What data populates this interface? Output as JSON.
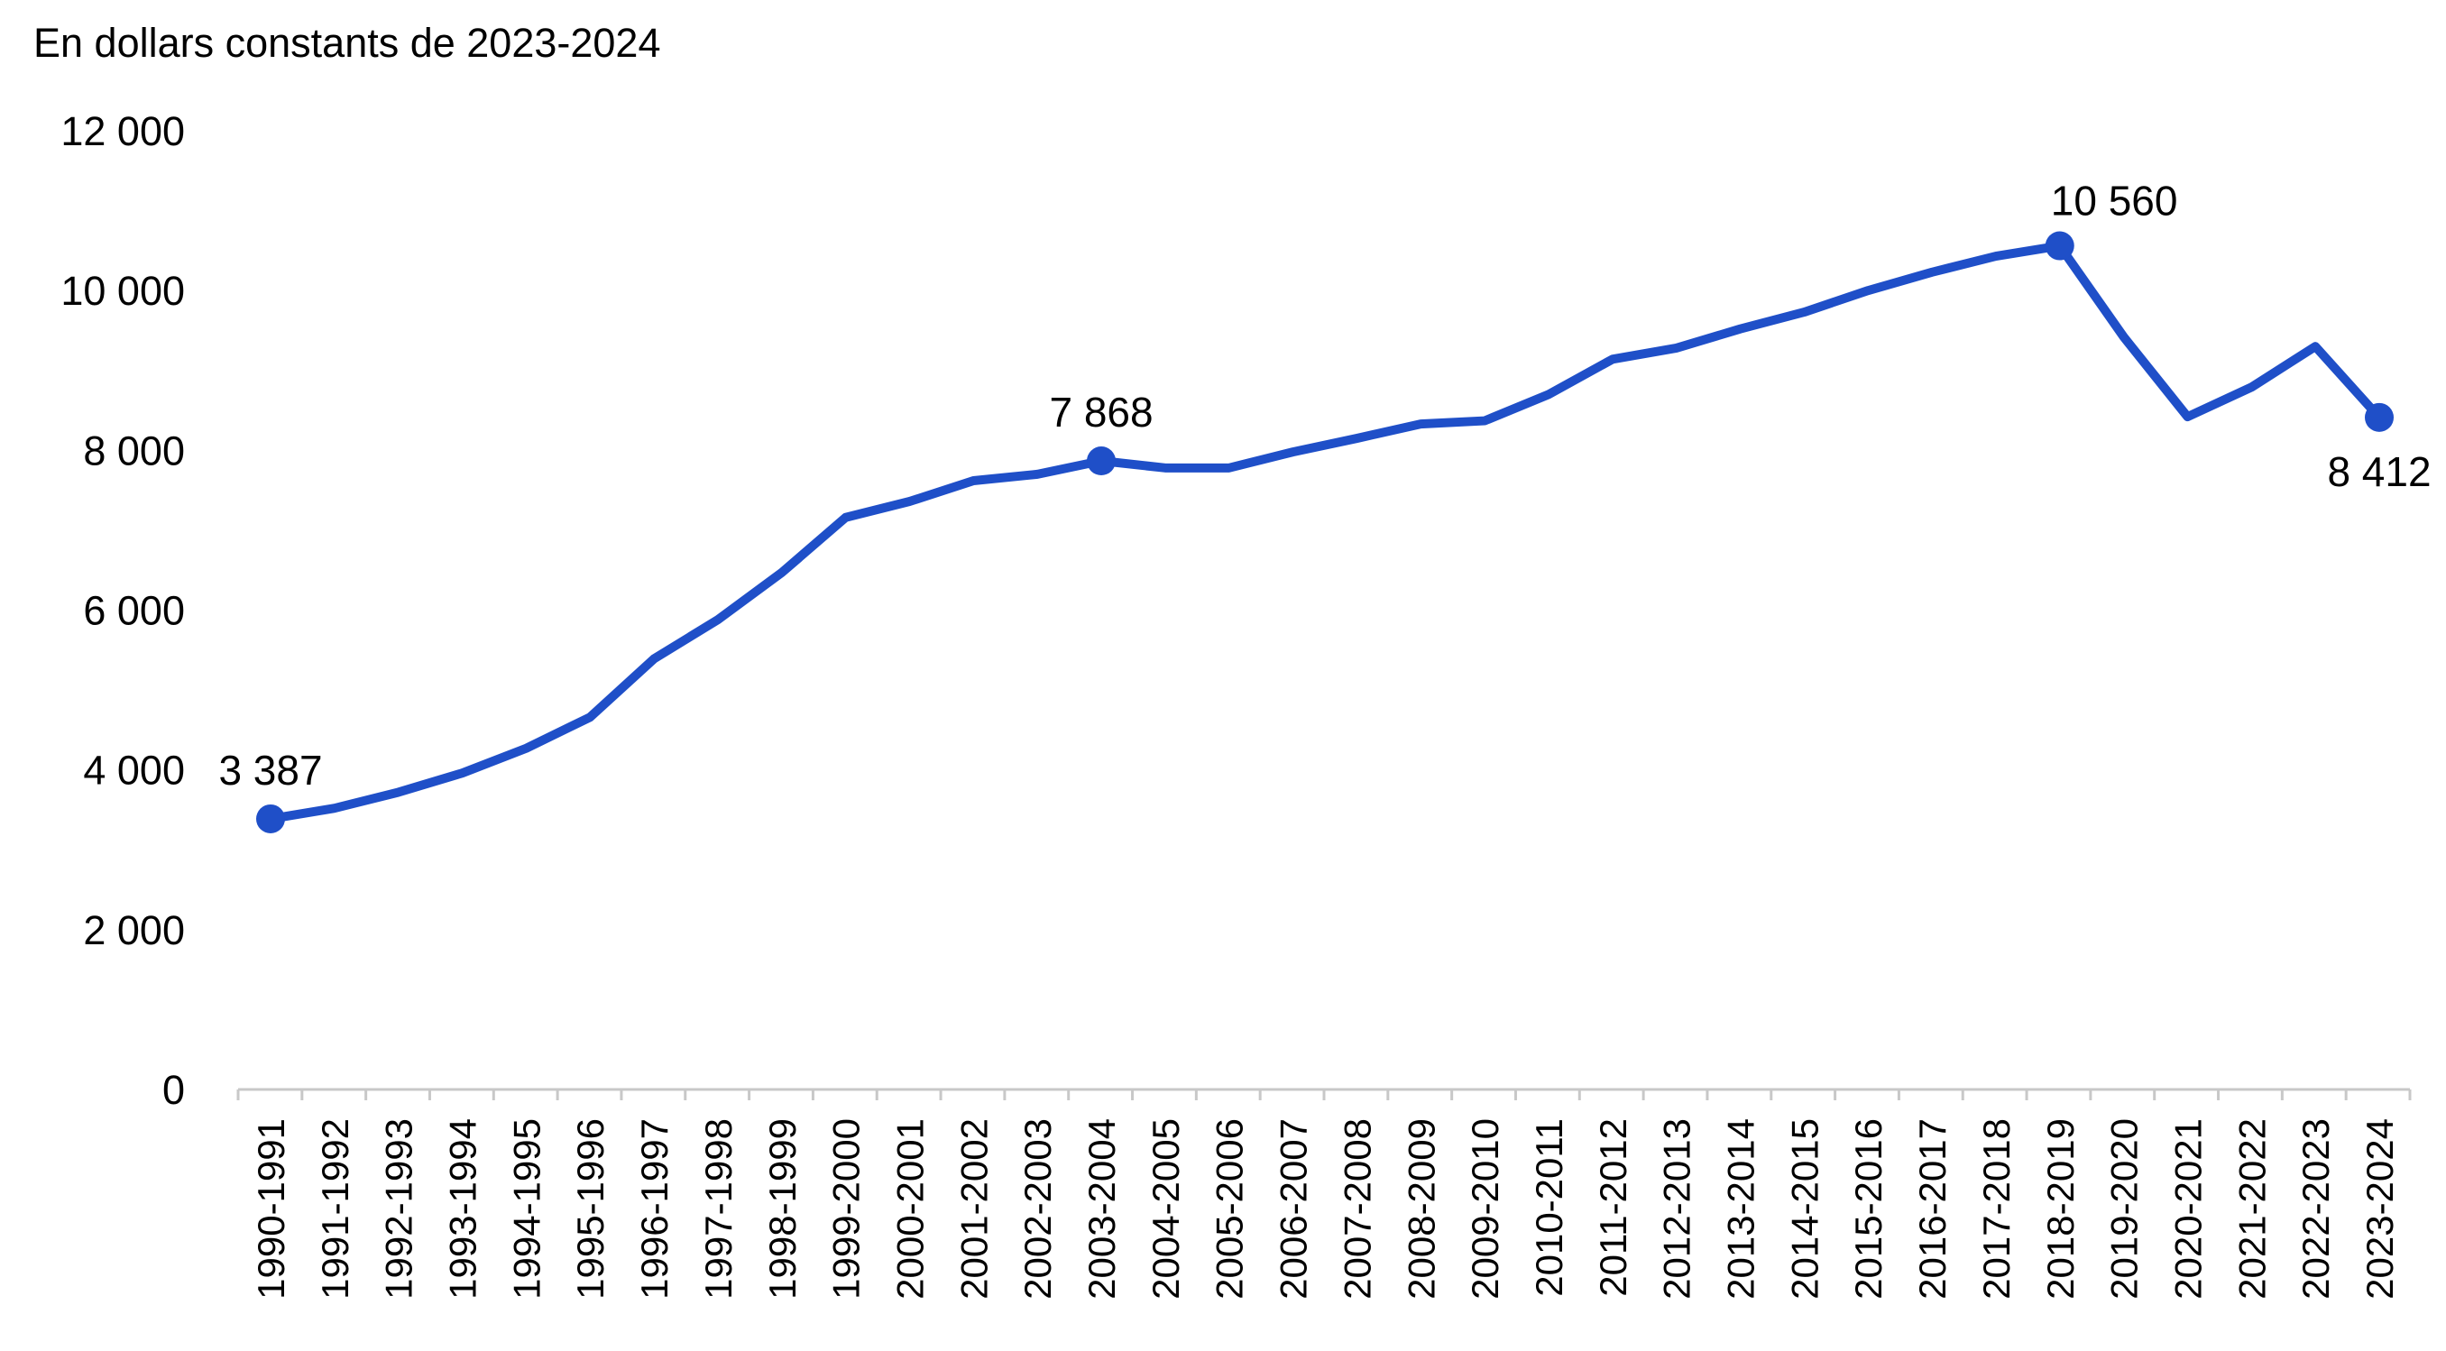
{
  "chart_data": {
    "type": "line",
    "ylabel": "En dollars constants de 2023-2024",
    "ylim": [
      0,
      12000
    ],
    "yticks": [
      0,
      2000,
      4000,
      6000,
      8000,
      10000,
      12000
    ],
    "ytick_labels": [
      "0",
      "2 000",
      "4 000",
      "6 000",
      "8 000",
      "10 000",
      "12 000"
    ],
    "grid": false,
    "categories": [
      "1990-1991",
      "1991-1992",
      "1992-1993",
      "1993-1994",
      "1994-1995",
      "1995-1996",
      "1996-1997",
      "1997-1998",
      "1998-1999",
      "1999-2000",
      "2000-2001",
      "2001-2002",
      "2002-2003",
      "2003-2004",
      "2004-2005",
      "2005-2006",
      "2006-2007",
      "2007-2008",
      "2008-2009",
      "2009-2010",
      "2010-2011",
      "2011-2012",
      "2012-2013",
      "2013-2014",
      "2014-2015",
      "2015-2016",
      "2016-2017",
      "2017-2018",
      "2018-2019",
      "2019-2020",
      "2020-2021",
      "2021-2022",
      "2022-2023",
      "2023-2024"
    ],
    "series": [
      {
        "color": "#1f4fc8",
        "values": [
          3387,
          3520,
          3720,
          3960,
          4270,
          4660,
          5390,
          5880,
          6470,
          7160,
          7360,
          7620,
          7700,
          7868,
          7780,
          7780,
          7980,
          8150,
          8330,
          8370,
          8700,
          9140,
          9280,
          9520,
          9730,
          10000,
          10230,
          10430,
          10560,
          9420,
          8420,
          8790,
          9300,
          8412
        ]
      }
    ],
    "highlighted_points": [
      {
        "index": 0,
        "label": "3 387",
        "label_position": "above"
      },
      {
        "index": 13,
        "label": "7 868",
        "label_position": "above"
      },
      {
        "index": 28,
        "label": "10 560",
        "label_position": "above-right"
      },
      {
        "index": 33,
        "label": "8 412",
        "label_position": "below"
      }
    ]
  }
}
